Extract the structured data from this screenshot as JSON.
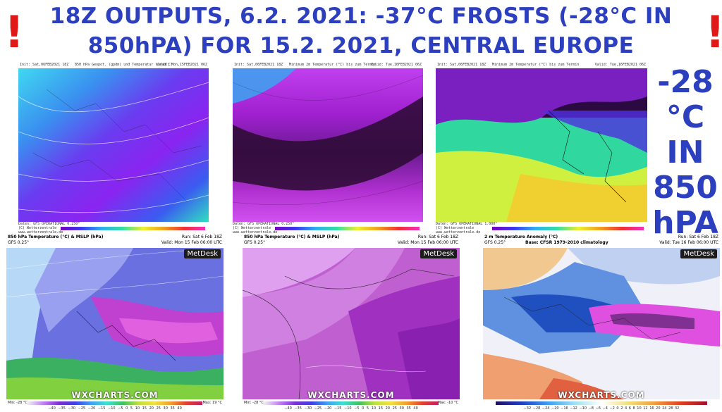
{
  "headline": {
    "line1": "18Z OUTPUTS, 6.2. 2021: -37°C FROSTS (-28°C IN",
    "line2": "850hPA) FOR 15.2. 2021, CENTRAL EUROPE",
    "exclaim_left": "!",
    "exclaim_right": "!"
  },
  "side_label": [
    "-28",
    "°C",
    "IN",
    "850",
    "hPA"
  ],
  "top_panels": [
    {
      "init": "Init: Sat,06FEB2021 18Z",
      "title": "850 hPa Geopot. (gpdm) und Temperatur (Grad C)",
      "valid": "Valid: Mon,15FEB2021 06Z",
      "footer1": "Daten: GFS OPERATIONAL 0.250°",
      "footer2": "(C) Wetterzentrale",
      "footer3": "www.wetterzentrale.de"
    },
    {
      "init": "Init: Sat,06FEB2021 18Z",
      "title": "Minimum 2m Temperatur (°C) bis zum Termin",
      "valid": "Valid: Tue,16FEB2021 06Z",
      "footer1": "Daten: GFS OPERATIONAL 0.250°",
      "footer2": "(C) Wetterzentrale",
      "footer3": "www.wetterzentrale.de"
    },
    {
      "init": "Init: Sat,06FEB2021 18Z",
      "title": "Minimum 2m Temperatur (°C) bis zum Termin",
      "valid": "Valid: Tue,16FEB2021 06Z",
      "footer1": "Daten: GFS OPERATIONAL 1.000°",
      "footer2": "(C) Wetterzentrale",
      "footer3": "www.wetterzentrale.de"
    }
  ],
  "bottom_panels": [
    {
      "title": "850 hPa Temperature (°C) & MSLP (hPa)",
      "model": "GFS 0.25°",
      "run": "Run: Sat 6 Feb 18Z",
      "valid": "Valid: Mon 15 Feb 06:00 UTC",
      "metdesk": "MetDesk",
      "logo": "WXCHARTS.COM",
      "min": "Min: -28 °C",
      "max": "Max: 19 °C",
      "ticks": "−40 −35 −30 −25 −20 −15 −10 −5 0 5 10 15 20 25 30 35 40"
    },
    {
      "title": "850 hPa Temperature (°C) & MSLP (hPa)",
      "model": "GFS 0.25°",
      "run": "Run: Sat 6 Feb 18Z",
      "valid": "Valid: Mon 15 Feb 06:00 UTC",
      "metdesk": "MetDesk",
      "logo": "WXCHARTS.COM",
      "min": "Min: -28 °C",
      "max": "Max: -10 °C",
      "ticks": "−40 −35 −30 −25 −20 −15 −10 −5 0 5 10 15 20 25 30 35 40"
    },
    {
      "title": "2 m Temperature Anomaly (°C)",
      "model": "GFS 0.25°",
      "subtitle": "Base: CFSR 1979-2010 climatology",
      "run": "Run: Sat 6 Feb 18Z",
      "valid": "Valid: Tue 16 Feb 06:00 UTC",
      "metdesk": "MetDesk",
      "logo": "WXCHARTS.COM",
      "ticks": "−32 −28 −24 −20 −16 −12 −10 −8 −6 −4 −2 0 2 4 6 8 10 12 16 20 24 28 32"
    }
  ],
  "colors": {
    "title": "#2b3fbf",
    "exclaim": "#e01818"
  }
}
